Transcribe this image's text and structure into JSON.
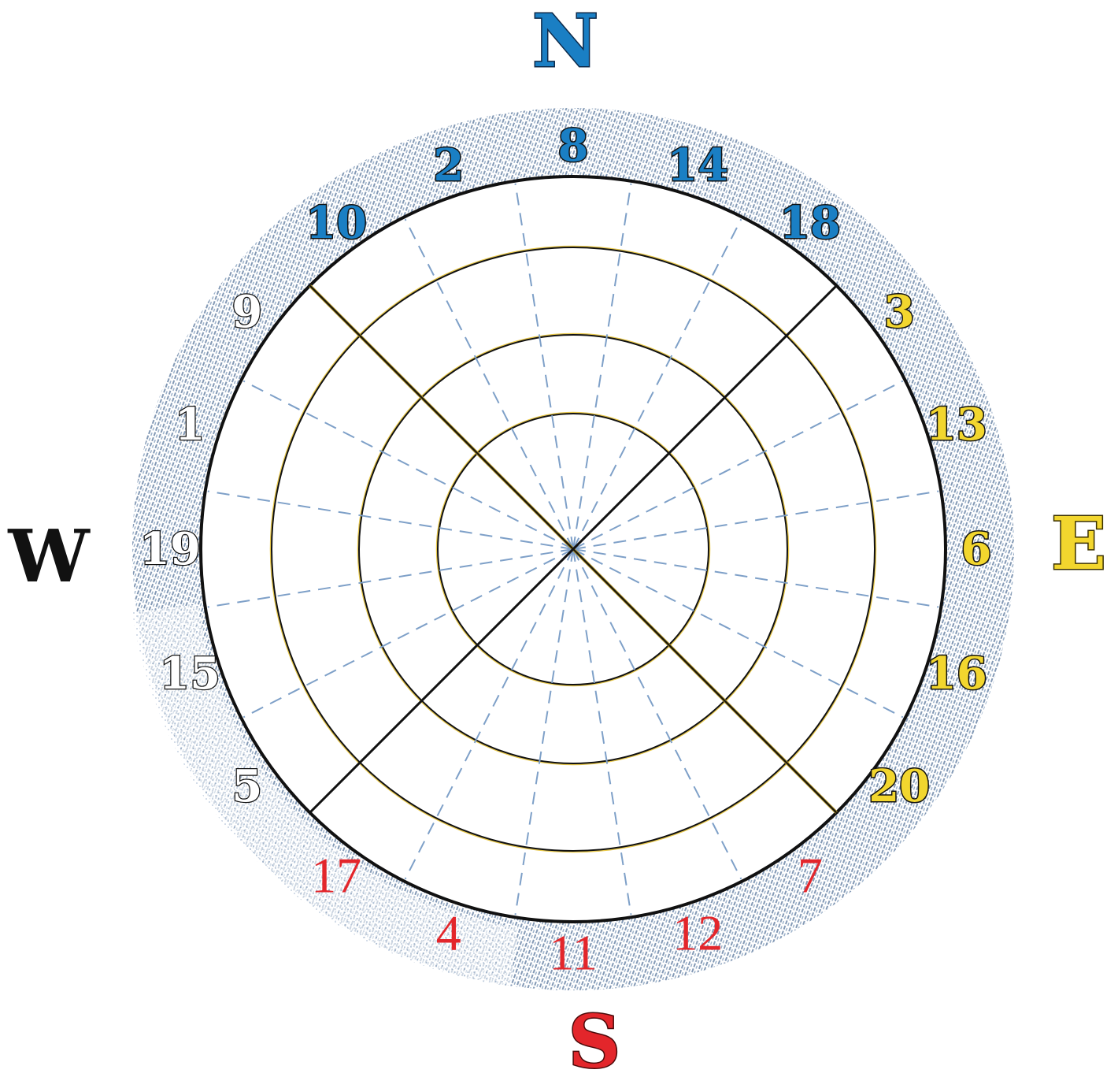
{
  "cardinals": {
    "north": {
      "label": "N",
      "color": "#1a7fc4",
      "outline": "#0d2a4a"
    },
    "east": {
      "label": "E",
      "color": "#f2d62e",
      "outline": "#3a3000"
    },
    "south": {
      "label": "S",
      "color": "#e3262b",
      "outline": "#4a0a0a"
    },
    "west": {
      "label": "W",
      "color": "#111111",
      "outline": "#111111"
    }
  },
  "sectors": [
    {
      "direction": "north",
      "color": "#1a7fc4",
      "style": "outlined",
      "numbers": [
        "10",
        "2",
        "8",
        "14",
        "18"
      ]
    },
    {
      "direction": "east",
      "color": "#f2d62e",
      "style": "outlined",
      "numbers": [
        "3",
        "13",
        "6",
        "16",
        "20"
      ]
    },
    {
      "direction": "south",
      "color": "#e3262b",
      "style": "plain",
      "numbers": [
        "7",
        "12",
        "11",
        "4",
        "17"
      ]
    },
    {
      "direction": "west",
      "color": "#111111",
      "style": "outlined-dark",
      "numbers": [
        "5",
        "15",
        "19",
        "1",
        "9"
      ]
    }
  ],
  "colors": {
    "ring_shading": "#6d87a8",
    "circle_stroke": "#111111",
    "circle_accent": "#e8c84a",
    "radial_dash": "#7ea0c8"
  }
}
